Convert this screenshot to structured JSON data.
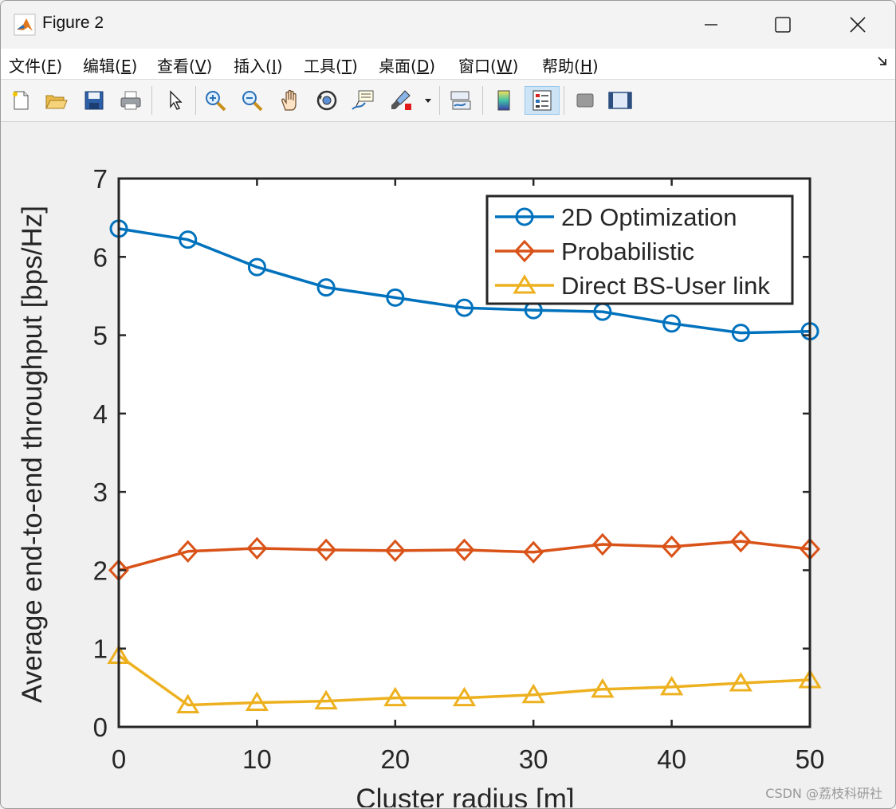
{
  "window": {
    "title": "Figure 2",
    "icons": {
      "app": "matlab-logo-icon",
      "minimize": "minimize-icon",
      "maximize": "maximize-icon",
      "close": "close-icon"
    }
  },
  "menu": {
    "items": [
      {
        "label": "文件(",
        "key": "F",
        "end": ")"
      },
      {
        "label": "编辑(",
        "key": "E",
        "end": ")"
      },
      {
        "label": "查看(",
        "key": "V",
        "end": ")"
      },
      {
        "label": "插入(",
        "key": "I",
        "end": ")"
      },
      {
        "label": "工具(",
        "key": "T",
        "end": ")"
      },
      {
        "label": "桌面(",
        "key": "D",
        "end": ")"
      },
      {
        "label": "窗口(",
        "key": "W",
        "end": ")"
      },
      {
        "label": "帮助(",
        "key": "H",
        "end": ")"
      }
    ],
    "overflow_icon": "menu-dock-arrow-icon"
  },
  "toolbar": {
    "buttons": [
      {
        "icon": "new-figure-icon",
        "active": false
      },
      {
        "icon": "open-file-icon",
        "active": false
      },
      {
        "icon": "save-icon",
        "active": false
      },
      {
        "icon": "print-icon",
        "active": false
      },
      {
        "icon": "select-arrow-icon",
        "active": false
      },
      {
        "icon": "zoom-in-icon",
        "active": false
      },
      {
        "icon": "zoom-out-icon",
        "active": false
      },
      {
        "icon": "pan-hand-icon",
        "active": false
      },
      {
        "icon": "rotate-3d-icon",
        "active": false
      },
      {
        "icon": "data-cursor-icon",
        "active": false
      },
      {
        "icon": "brush-icon",
        "active": false
      },
      {
        "icon": "link-plot-icon",
        "active": false
      },
      {
        "icon": "colorbar-icon",
        "active": false
      },
      {
        "icon": "legend-icon",
        "active": true
      },
      {
        "icon": "hide-plot-tools-icon",
        "active": false
      },
      {
        "icon": "show-plot-tools-icon",
        "active": false
      }
    ]
  },
  "chart_data": {
    "type": "line",
    "title": "",
    "xlabel": "Cluster radius [m]",
    "ylabel": "Average end-to-end throughput [bps/Hz]",
    "xlim": [
      0,
      50
    ],
    "ylim": [
      0,
      7
    ],
    "xticks": [
      0,
      10,
      20,
      30,
      40,
      50
    ],
    "yticks": [
      0,
      1,
      2,
      3,
      4,
      5,
      6,
      7
    ],
    "x": [
      0,
      5,
      10,
      15,
      20,
      25,
      30,
      35,
      40,
      45,
      50
    ],
    "grid": false,
    "legend_position": "top-right",
    "series": [
      {
        "name": "2D Optimization",
        "marker": "circle",
        "color": "#0072BD",
        "values": [
          6.36,
          6.22,
          5.87,
          5.61,
          5.48,
          5.35,
          5.32,
          5.3,
          5.15,
          5.03,
          5.05
        ]
      },
      {
        "name": "Probabilistic",
        "marker": "diamond",
        "color": "#D95319",
        "values": [
          2.0,
          2.24,
          2.28,
          2.26,
          2.25,
          2.26,
          2.23,
          2.33,
          2.3,
          2.37,
          2.27
        ]
      },
      {
        "name": "Direct BS-User link",
        "marker": "triangle",
        "color": "#EDB120",
        "values": [
          0.91,
          0.28,
          0.31,
          0.33,
          0.37,
          0.37,
          0.41,
          0.48,
          0.51,
          0.56,
          0.6
        ]
      }
    ]
  },
  "watermark": "CSDN @荔枝科研社"
}
